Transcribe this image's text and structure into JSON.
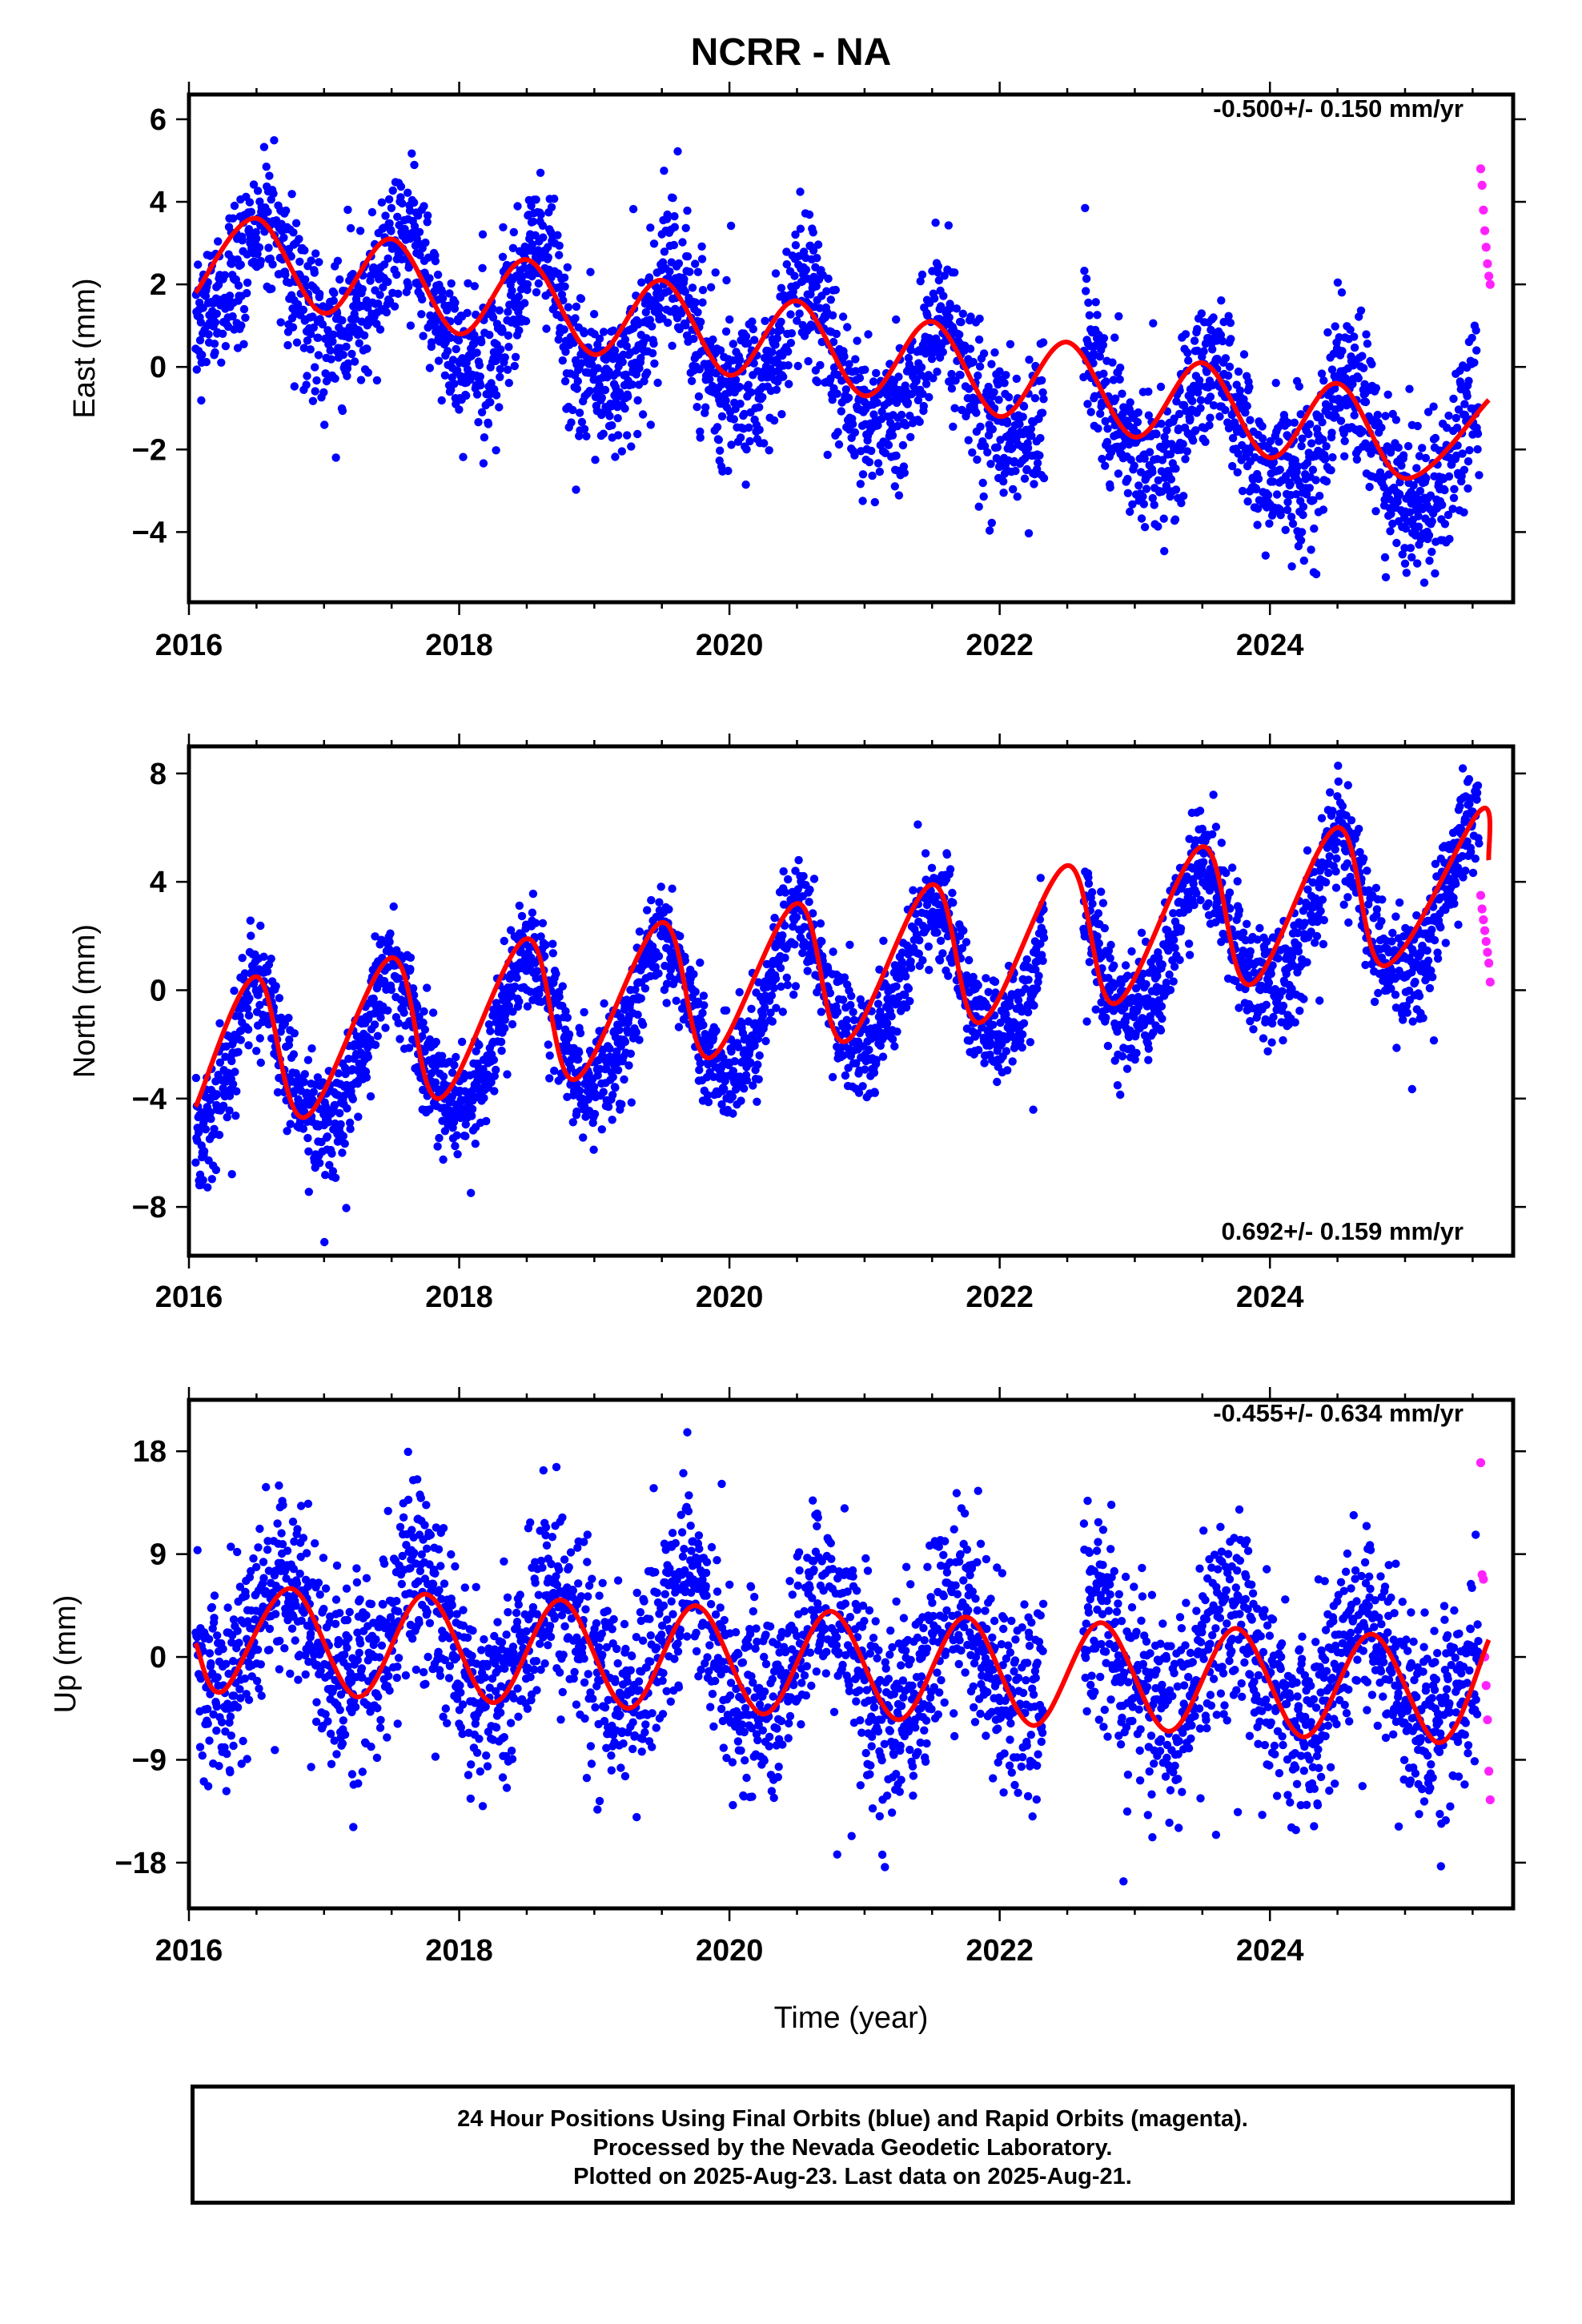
{
  "title": "NCRR - NA",
  "xlabel": "Time (year)",
  "footer": {
    "line1": "24 Hour Positions Using Final Orbits (blue) and Rapid Orbits (magenta).",
    "line2": "Processed by the Nevada Geodetic Laboratory.",
    "line3": "Plotted on 2025-Aug-23. Last data on 2025-Aug-21."
  },
  "colors": {
    "final": "#0000ff",
    "rapid": "#ff22ff",
    "model": "#ff0000"
  },
  "chart_data": [
    {
      "type": "scatter",
      "ylabel": "East (mm)",
      "rate_label": "-0.500+/- 0.150 mm/yr",
      "xlim": [
        2016.0,
        2025.8
      ],
      "ylim": [
        -5.7,
        6.6
      ],
      "yticks": [
        6,
        4,
        2,
        0,
        -2,
        -4
      ],
      "ytick_labels": [
        "6",
        "4",
        "2",
        "0",
        "−2",
        "−4"
      ],
      "xticks": [
        2016,
        2018,
        2020,
        2022,
        2024
      ],
      "trend": {
        "rate_mm_per_yr": -0.5,
        "mean_mm": 0.0
      },
      "seasonal": {
        "annual_amp": 1.35,
        "annual_phase_yr": 0.58,
        "semiannual_amp": 0.35
      },
      "scatter_sd": 0.9,
      "rapid_points": {
        "x": [
          2025.56,
          2025.57,
          2025.58,
          2025.59,
          2025.6,
          2025.61,
          2025.62,
          2025.63
        ],
        "y": [
          4.8,
          4.4,
          3.8,
          3.3,
          2.9,
          2.5,
          2.2,
          2.0
        ]
      },
      "model_curve": {
        "x": [
          2016.05,
          2016.5,
          2017.0,
          2017.5,
          2018.0,
          2018.5,
          2019.0,
          2019.5,
          2020.0,
          2020.5,
          2021.0,
          2021.5,
          2022.0,
          2022.5,
          2023.0,
          2023.5,
          2024.0,
          2024.5,
          2025.0,
          2025.62
        ],
        "y": [
          1.8,
          3.6,
          1.3,
          3.1,
          0.8,
          2.6,
          0.3,
          2.1,
          -0.2,
          1.6,
          -0.7,
          1.1,
          -1.2,
          0.6,
          -1.7,
          0.1,
          -2.2,
          -0.4,
          -2.7,
          -0.8
        ]
      }
    },
    {
      "type": "scatter",
      "ylabel": "North (mm)",
      "rate_label": "0.692+/- 0.159 mm/yr",
      "xlim": [
        2016.0,
        2025.8
      ],
      "ylim": [
        -9.8,
        9.0
      ],
      "yticks": [
        8,
        4,
        0,
        -4,
        -8
      ],
      "ytick_labels": [
        "8",
        "4",
        "0",
        "−4",
        "−8"
      ],
      "xticks": [
        2016,
        2018,
        2020,
        2022,
        2024
      ],
      "trend": {
        "rate_mm_per_yr": 0.692,
        "mean_mm": 0.0
      },
      "seasonal": {
        "annual_amp": 2.6,
        "annual_phase_yr": 0.5,
        "semiannual_amp": 0.3
      },
      "scatter_sd": 1.0,
      "rapid_points": {
        "x": [
          2025.56,
          2025.57,
          2025.58,
          2025.59,
          2025.6,
          2025.61,
          2025.62,
          2025.63
        ],
        "y": [
          3.5,
          3.0,
          2.6,
          2.2,
          1.8,
          1.4,
          1.0,
          0.3
        ]
      },
      "model_curve": {
        "x": [
          2016.05,
          2016.5,
          2016.85,
          2017.5,
          2017.85,
          2018.5,
          2018.85,
          2019.5,
          2019.85,
          2020.5,
          2020.85,
          2021.5,
          2021.85,
          2022.5,
          2022.85,
          2023.5,
          2023.85,
          2024.5,
          2024.85,
          2025.55,
          2025.62
        ],
        "y": [
          -4.3,
          0.5,
          -4.7,
          1.2,
          -4.0,
          1.9,
          -3.3,
          2.5,
          -2.5,
          3.2,
          -1.9,
          3.9,
          -1.2,
          4.6,
          -0.5,
          5.3,
          0.2,
          6.0,
          0.9,
          6.6,
          4.8
        ]
      }
    },
    {
      "type": "scatter",
      "ylabel": "Up (mm)",
      "rate_label": "-0.455+/- 0.634 mm/yr",
      "xlim": [
        2016.0,
        2025.8
      ],
      "ylim": [
        -22.0,
        22.5
      ],
      "yticks": [
        18,
        9,
        0,
        -9,
        -18
      ],
      "ytick_labels": [
        "18",
        "9",
        "0",
        "−9",
        "−18"
      ],
      "xticks": [
        2016,
        2018,
        2020,
        2022,
        2024
      ],
      "trend": {
        "rate_mm_per_yr": -0.455,
        "mean_mm": 0.0
      },
      "seasonal": {
        "annual_amp": 4.8,
        "annual_phase_yr": 0.7,
        "semiannual_amp": 0.5
      },
      "scatter_sd": 4.2,
      "rapid_points": {
        "x": [
          2025.56,
          2025.57,
          2025.58,
          2025.59,
          2025.6,
          2025.61,
          2025.62,
          2025.63
        ],
        "y": [
          17.0,
          7.2,
          6.8,
          0.0,
          -2.5,
          -5.5,
          -10.0,
          -12.5
        ]
      },
      "model_curve": {
        "x": [
          2016.05,
          2016.25,
          2016.75,
          2017.25,
          2017.75,
          2018.25,
          2018.75,
          2019.25,
          2019.75,
          2020.25,
          2020.75,
          2021.25,
          2021.75,
          2022.25,
          2022.75,
          2023.25,
          2023.75,
          2024.25,
          2024.75,
          2025.25,
          2025.62
        ],
        "y": [
          1.2,
          -3.0,
          6.0,
          -3.5,
          5.5,
          -4.0,
          5.0,
          -4.5,
          4.5,
          -5.0,
          4.0,
          -5.5,
          3.5,
          -6.0,
          3.0,
          -6.5,
          2.5,
          -7.0,
          2.0,
          -7.5,
          1.5
        ]
      }
    }
  ]
}
